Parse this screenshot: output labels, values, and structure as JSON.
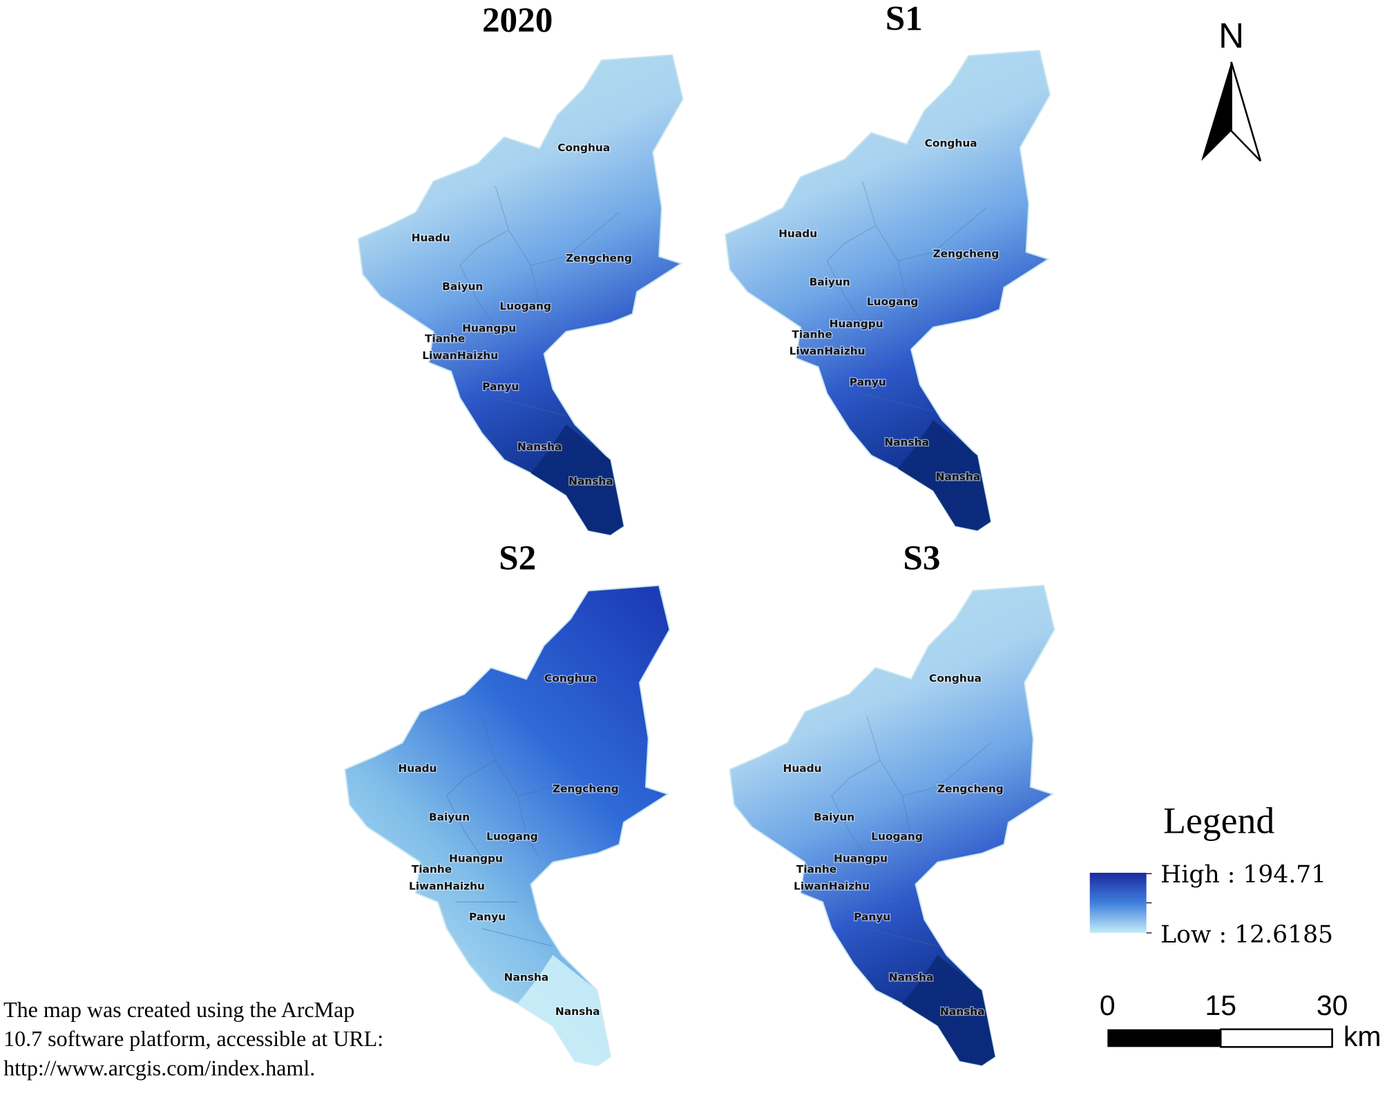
{
  "panels": [
    {
      "title": "2020",
      "labels": [
        "Conghua",
        "Huadu",
        "Zengcheng",
        "Baiyun",
        "Luogang",
        "Huangpu",
        "Tianhe",
        "Liwan",
        "Haizhu",
        "Panyu",
        "Nansha",
        "Nansha"
      ]
    },
    {
      "title": "S1",
      "labels": [
        "Conghua",
        "Huadu",
        "Zengcheng",
        "Baiyun",
        "Luogang",
        "Huangpu",
        "Tianhe",
        "Liwan",
        "Haizhu",
        "Panyu",
        "Nansha",
        "Nansha"
      ]
    },
    {
      "title": "S2",
      "labels": [
        "Conghua",
        "Huadu",
        "Zengcheng",
        "Baiyun",
        "Luogang",
        "Huangpu",
        "Tianhe",
        "Liwan",
        "Haizhu",
        "Panyu",
        "Nansha",
        "Nansha"
      ]
    },
    {
      "title": "S3",
      "labels": [
        "Conghua",
        "Huadu",
        "Zengcheng",
        "Baiyun",
        "Luogang",
        "Huangpu",
        "Tianhe",
        "Liwan",
        "Haizhu",
        "Panyu",
        "Nansha",
        "Nansha"
      ]
    }
  ],
  "north_arrow": {
    "label": "N"
  },
  "legend": {
    "title": "Legend",
    "high": "High : 194.71",
    "low": "Low : 12.6185"
  },
  "scale_bar": {
    "ticks": [
      "0",
      "15",
      "30"
    ],
    "unit": "km"
  },
  "note": [
    "The map was created using the ArcMap",
    "10.7 software platform, accessible at URL:",
    "http://www.arcgis.com/index.haml."
  ]
}
